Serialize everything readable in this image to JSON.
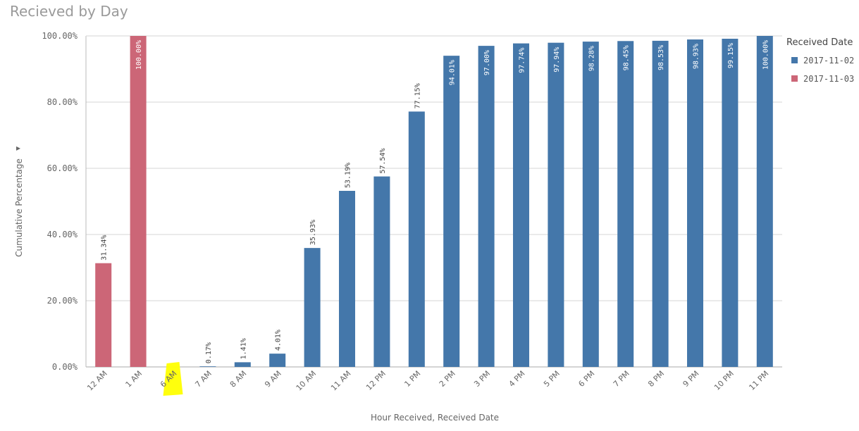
{
  "page": {
    "title": "Recieved by Day"
  },
  "colors": {
    "series_2017_11_02": "#4477aa",
    "series_2017_11_03": "#cc6677",
    "highlight": "#ffff00"
  },
  "chart_data": {
    "type": "bar",
    "title": "Recieved by Day",
    "xlabel": "Hour Received,  Received Date",
    "ylabel": "Cumulative Percentage",
    "ylim": [
      0,
      100
    ],
    "yticks": [
      "0.00%",
      "20.00%",
      "40.00%",
      "60.00%",
      "80.00%",
      "100.00%"
    ],
    "categories": [
      "12 AM",
      "1 AM",
      "6 AM",
      "7 AM",
      "8 AM",
      "9 AM",
      "10 AM",
      "11 AM",
      "12 PM",
      "1 PM",
      "2 PM",
      "3 PM",
      "4 PM",
      "5 PM",
      "6 PM",
      "7 PM",
      "8 PM",
      "9 PM",
      "10 PM",
      "11 PM"
    ],
    "highlighted_category": "6 AM",
    "legend": {
      "title": "Received Date",
      "position": "right-top"
    },
    "grid": true,
    "series": [
      {
        "name": "2017-11-02",
        "color": "#4477aa",
        "values": [
          null,
          null,
          0.0,
          0.17,
          1.41,
          4.01,
          35.93,
          53.19,
          57.54,
          77.15,
          94.01,
          97.0,
          97.74,
          97.94,
          98.28,
          98.45,
          98.53,
          98.93,
          99.15,
          100.0
        ],
        "labels": [
          null,
          null,
          null,
          "0.17%",
          "1.41%",
          "4.01%",
          "35.93%",
          "53.19%",
          "57.54%",
          "77.15%",
          "94.01%",
          "97.00%",
          "97.74%",
          "97.94%",
          "98.28%",
          "98.45%",
          "98.53%",
          "98.93%",
          "99.15%",
          "100.00%"
        ]
      },
      {
        "name": "2017-11-03",
        "color": "#cc6677",
        "values": [
          31.34,
          100.0,
          null,
          null,
          null,
          null,
          null,
          null,
          null,
          null,
          null,
          null,
          null,
          null,
          null,
          null,
          null,
          null,
          null,
          null
        ],
        "labels": [
          "31.34%",
          "100.00%",
          null,
          null,
          null,
          null,
          null,
          null,
          null,
          null,
          null,
          null,
          null,
          null,
          null,
          null,
          null,
          null,
          null,
          null
        ]
      }
    ]
  }
}
